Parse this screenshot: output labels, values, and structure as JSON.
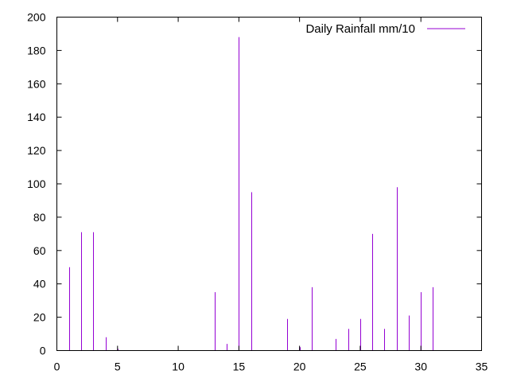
{
  "chart_data": {
    "type": "bar",
    "style": "impulses",
    "title": "",
    "xlabel": "",
    "ylabel": "",
    "xlim": [
      0,
      35
    ],
    "ylim": [
      0,
      200
    ],
    "xticks": [
      0,
      5,
      10,
      15,
      20,
      25,
      30,
      35
    ],
    "yticks": [
      0,
      20,
      40,
      60,
      80,
      100,
      120,
      140,
      160,
      180,
      200
    ],
    "grid": false,
    "legend_position": "top-right",
    "series": [
      {
        "name": "Daily Rainfall mm/10",
        "color": "#9400d3",
        "x": [
          1,
          2,
          3,
          4,
          5,
          6,
          7,
          8,
          9,
          10,
          11,
          12,
          13,
          14,
          15,
          16,
          17,
          18,
          19,
          20,
          21,
          22,
          23,
          24,
          25,
          26,
          27,
          28,
          29,
          30,
          31
        ],
        "y": [
          50,
          71,
          71,
          8,
          1,
          0,
          0,
          0,
          0,
          0,
          0,
          0,
          35,
          4,
          188,
          95,
          0,
          0,
          19,
          2,
          38,
          0,
          7,
          13,
          19,
          70,
          13,
          98,
          21,
          35,
          38
        ]
      }
    ]
  }
}
